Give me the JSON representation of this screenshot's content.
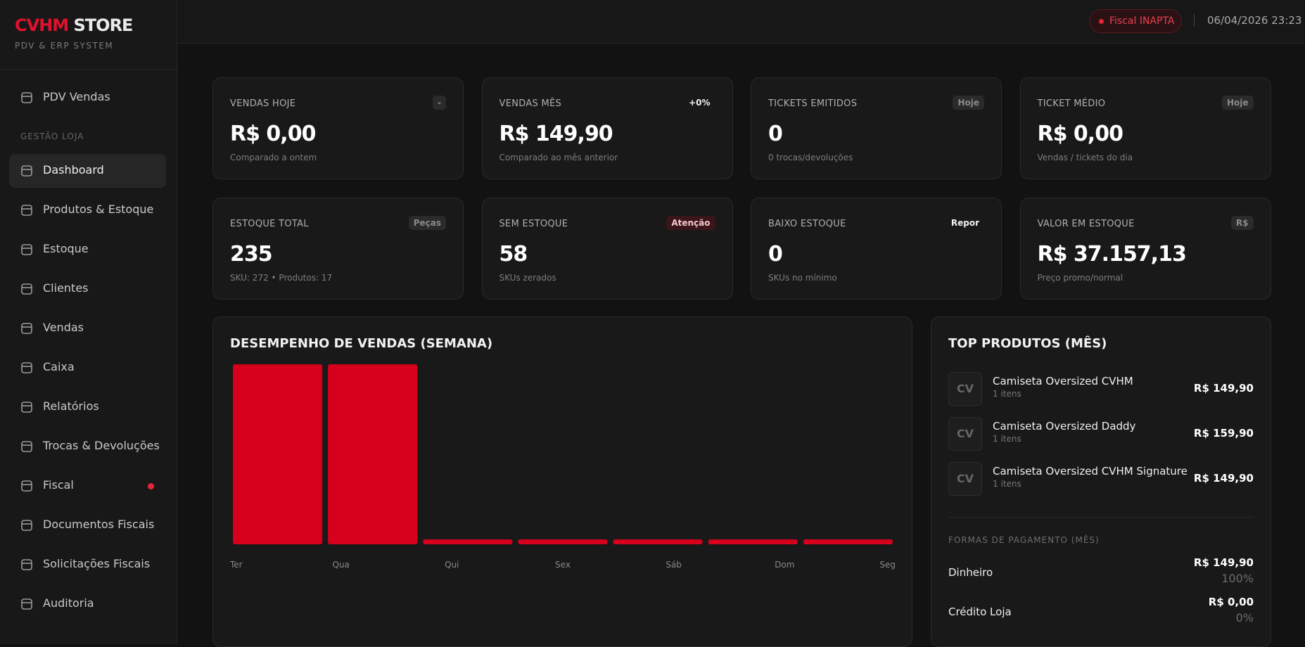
{
  "brand": {
    "accent": "CVHM",
    "name": "STORE",
    "tagline": "PDV & ERP SYSTEM"
  },
  "nav": {
    "top": [
      "PDV Vendas"
    ],
    "section": "GESTÃO LOJA",
    "items": [
      "Dashboard",
      "Produtos & Estoque",
      "Estoque",
      "Clientes",
      "Vendas",
      "Caixa",
      "Relatórios",
      "Trocas & Devoluções",
      "Fiscal",
      "Documentos Fiscais",
      "Solicitações Fiscais",
      "Auditoria"
    ]
  },
  "header": {
    "fiscal_status": "Fiscal INAPTA",
    "datetime": "06/04/2026 23:23"
  },
  "stats": [
    {
      "label": "VENDAS HOJE",
      "badge": "-",
      "value": "R$ 0,00",
      "sub": "Comparado a ontem"
    },
    {
      "label": "VENDAS MÊS",
      "badge": "+0%",
      "value": "R$ 149,90",
      "sub": "Comparado ao mês anterior"
    },
    {
      "label": "TICKETS EMITIDOS",
      "badge": "Hoje",
      "value": "0",
      "sub": "0 trocas/devoluções"
    },
    {
      "label": "TICKET MÉDIO",
      "badge": "Hoje",
      "value": "R$ 0,00",
      "sub": "Vendas / tickets do dia"
    },
    {
      "label": "ESTOQUE TOTAL",
      "badge": "Peças",
      "value": "235",
      "sub": "SKU: 272 • Produtos: 17"
    },
    {
      "label": "SEM ESTOQUE",
      "badge": "Atenção",
      "value": "58",
      "sub": "SKUs zerados"
    },
    {
      "label": "BAIXO ESTOQUE",
      "badge": "Repor",
      "value": "0",
      "sub": "SKUs no mínimo"
    },
    {
      "label": "VALOR EM ESTOQUE",
      "badge": "R$",
      "value": "R$ 37.157,13",
      "sub": "Preço promo/normal"
    }
  ],
  "chart_data": {
    "type": "bar",
    "title": "DESEMPENHO DE VENDAS (SEMANA)",
    "categories": [
      "Ter",
      "Qua",
      "Qui",
      "Sex",
      "Sáb",
      "Dom",
      "Seg"
    ],
    "values": [
      100,
      100,
      0,
      0,
      0,
      0,
      0
    ],
    "ylim": [
      0,
      100
    ],
    "color": "#d6001c"
  },
  "top_products": {
    "title": "TOP PRODUTOS (MÊS)",
    "items": [
      {
        "initials": "CV",
        "name": "Camiseta Oversized CVHM",
        "sub": "1 itens",
        "price": "R$ 149,90"
      },
      {
        "initials": "CV",
        "name": "Camiseta Oversized Daddy",
        "sub": "1 itens",
        "price": "R$ 159,90"
      },
      {
        "initials": "CV",
        "name": "Camiseta Oversized CVHM Signature",
        "sub": "1 itens",
        "price": "R$ 149,90"
      }
    ],
    "payments_title": "FORMAS DE PAGAMENTO (MÊS)",
    "payments": [
      {
        "method": "Dinheiro",
        "amount": "R$ 149,90",
        "percent": "100%"
      },
      {
        "method": "Crédito Loja",
        "amount": "R$ 0,00",
        "percent": "0%"
      }
    ]
  }
}
